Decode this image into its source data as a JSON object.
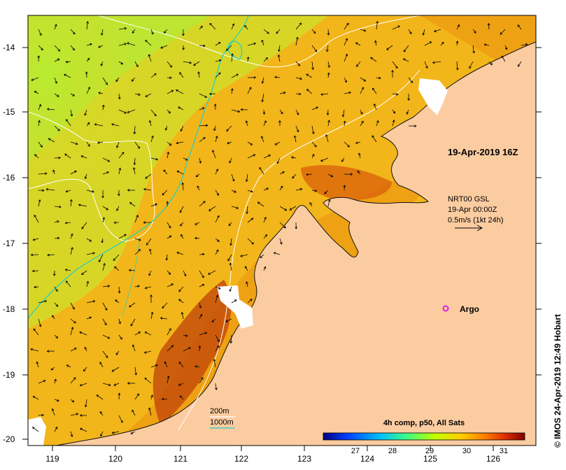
{
  "map": {
    "timestamp": "19-Apr-2019 16Z",
    "current_product": {
      "line1": "NRT00 GSL",
      "line2": "19-Apr 00:00Z",
      "line3": "0.5m/s (1kt 24h)"
    },
    "argo_label": "Argo",
    "legend": {
      "depth_200": "200m",
      "depth_1000": "1000m"
    },
    "colorbar": {
      "title": "4h comp, p50, All Sats",
      "ticks": [
        "27",
        "28",
        "29",
        "30",
        "31"
      ],
      "range": [
        26.2,
        31.6
      ],
      "colors": [
        "#00007f",
        "#0040ff",
        "#00c0ff",
        "#40ff80",
        "#c0ff00",
        "#ffd000",
        "#ff8000",
        "#e03000",
        "#800000"
      ]
    },
    "x_ticks": [
      "119",
      "120",
      "121",
      "122",
      "123",
      "124",
      "125",
      "126"
    ],
    "y_ticks": [
      "-14",
      "-15",
      "-16",
      "-17",
      "-18",
      "-19",
      "-20"
    ],
    "colors": {
      "land": "#fccca1",
      "no_data": "#ffffff",
      "contour_200": "#ffffff",
      "contour_1000": "#20d0c0",
      "argo": "#e020e0"
    }
  },
  "credit": "© IMOS 24-Apr-2019 12:49 Hobart"
}
